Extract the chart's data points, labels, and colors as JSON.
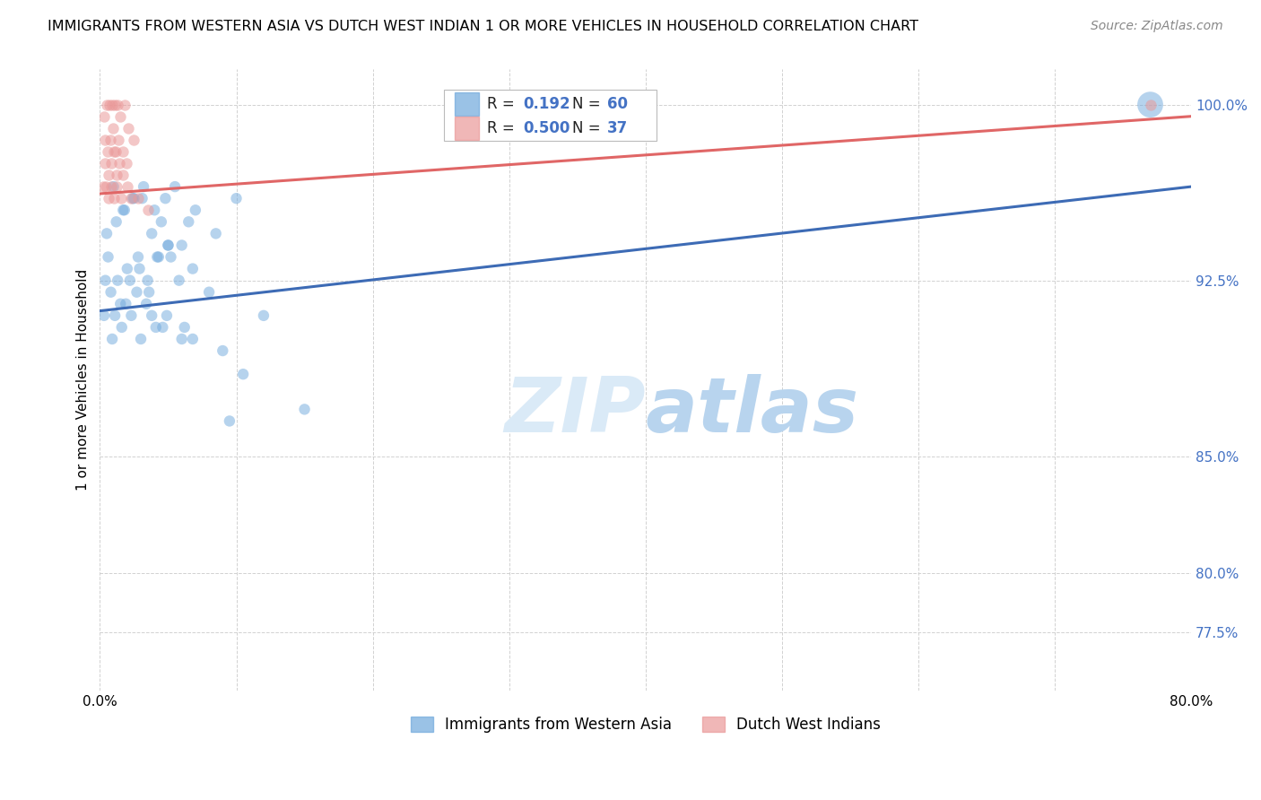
{
  "title": "IMMIGRANTS FROM WESTERN ASIA VS DUTCH WEST INDIAN 1 OR MORE VEHICLES IN HOUSEHOLD CORRELATION CHART",
  "source": "Source: ZipAtlas.com",
  "ylabel": "1 or more Vehicles in Household",
  "legend_blue_R": "0.192",
  "legend_blue_N": "60",
  "legend_pink_R": "0.500",
  "legend_pink_N": "37",
  "blue_scatter_x": [
    0.5,
    1.2,
    1.8,
    2.5,
    3.1,
    3.8,
    4.5,
    5.2,
    6.0,
    7.0,
    0.8,
    1.5,
    2.2,
    2.9,
    3.6,
    4.3,
    5.0,
    5.8,
    6.8,
    8.0,
    1.0,
    1.7,
    2.4,
    3.2,
    4.0,
    4.8,
    5.5,
    6.5,
    8.5,
    10.0,
    0.6,
    1.3,
    2.0,
    2.8,
    3.5,
    4.2,
    5.0,
    6.2,
    9.0,
    12.0,
    0.4,
    1.1,
    1.9,
    2.7,
    3.4,
    4.1,
    4.9,
    6.8,
    10.5,
    15.0,
    0.3,
    0.9,
    1.6,
    2.3,
    3.0,
    3.8,
    4.6,
    6.0,
    9.5,
    77.0
  ],
  "blue_scatter_y": [
    94.5,
    95.0,
    95.5,
    96.0,
    96.0,
    94.5,
    95.0,
    93.5,
    94.0,
    95.5,
    92.0,
    91.5,
    92.5,
    93.0,
    92.0,
    93.5,
    94.0,
    92.5,
    93.0,
    92.0,
    96.5,
    95.5,
    96.0,
    96.5,
    95.5,
    96.0,
    96.5,
    95.0,
    94.5,
    96.0,
    93.5,
    92.5,
    93.0,
    93.5,
    92.5,
    93.5,
    94.0,
    90.5,
    89.5,
    91.0,
    92.5,
    91.0,
    91.5,
    92.0,
    91.5,
    90.5,
    91.0,
    90.0,
    88.5,
    87.0,
    91.0,
    90.0,
    90.5,
    91.0,
    90.0,
    91.0,
    90.5,
    90.0,
    86.5,
    100.0
  ],
  "blue_scatter_size": [
    80,
    80,
    80,
    80,
    80,
    80,
    80,
    80,
    80,
    80,
    80,
    80,
    80,
    80,
    80,
    80,
    80,
    80,
    80,
    80,
    80,
    80,
    80,
    80,
    80,
    80,
    80,
    80,
    80,
    80,
    80,
    80,
    80,
    80,
    80,
    80,
    80,
    80,
    80,
    80,
    80,
    80,
    80,
    80,
    80,
    80,
    80,
    80,
    80,
    80,
    80,
    80,
    80,
    80,
    80,
    80,
    80,
    80,
    80,
    430
  ],
  "pink_scatter_x": [
    0.3,
    0.5,
    0.7,
    0.9,
    1.1,
    1.3,
    1.5,
    1.8,
    2.1,
    2.5,
    0.4,
    0.6,
    0.8,
    1.0,
    1.2,
    1.4,
    1.7,
    2.0,
    2.3,
    2.8,
    0.35,
    0.55,
    0.75,
    0.95,
    1.15,
    1.35,
    1.65,
    1.95,
    3.5,
    77.0,
    0.45,
    0.65,
    0.85,
    1.05,
    1.25,
    1.55,
    0.25
  ],
  "pink_scatter_y": [
    99.5,
    100.0,
    100.0,
    100.0,
    100.0,
    100.0,
    99.5,
    100.0,
    99.0,
    98.5,
    97.5,
    97.0,
    97.5,
    98.0,
    97.0,
    97.5,
    97.0,
    96.5,
    96.0,
    96.0,
    98.5,
    98.0,
    98.5,
    99.0,
    98.0,
    98.5,
    98.0,
    97.5,
    95.5,
    100.0,
    96.5,
    96.0,
    96.5,
    96.0,
    96.5,
    96.0,
    96.5
  ],
  "blue_line_x": [
    0,
    80
  ],
  "blue_line_y": [
    91.2,
    96.5
  ],
  "pink_line_x": [
    0,
    80
  ],
  "pink_line_y": [
    96.2,
    99.5
  ],
  "blue_color": "#6fa8dc",
  "pink_color": "#ea9999",
  "blue_line_color": "#3d6bb5",
  "pink_line_color": "#e06666",
  "watermark_color": "#daeaf7",
  "background_color": "#ffffff",
  "grid_color": "#cccccc",
  "xlim": [
    0,
    80
  ],
  "ylim": [
    75,
    101.5
  ],
  "ytick_positions": [
    77.5,
    80.0,
    85.0,
    92.5,
    100.0
  ],
  "ytick_labels": [
    "77.5%",
    "80.0%",
    "85.0%",
    "92.5%",
    "100.0%"
  ],
  "xtick_positions": [
    0,
    10,
    20,
    30,
    40,
    50,
    60,
    70,
    80
  ],
  "legend_bottom_label1": "Immigrants from Western Asia",
  "legend_bottom_label2": "Dutch West Indians"
}
